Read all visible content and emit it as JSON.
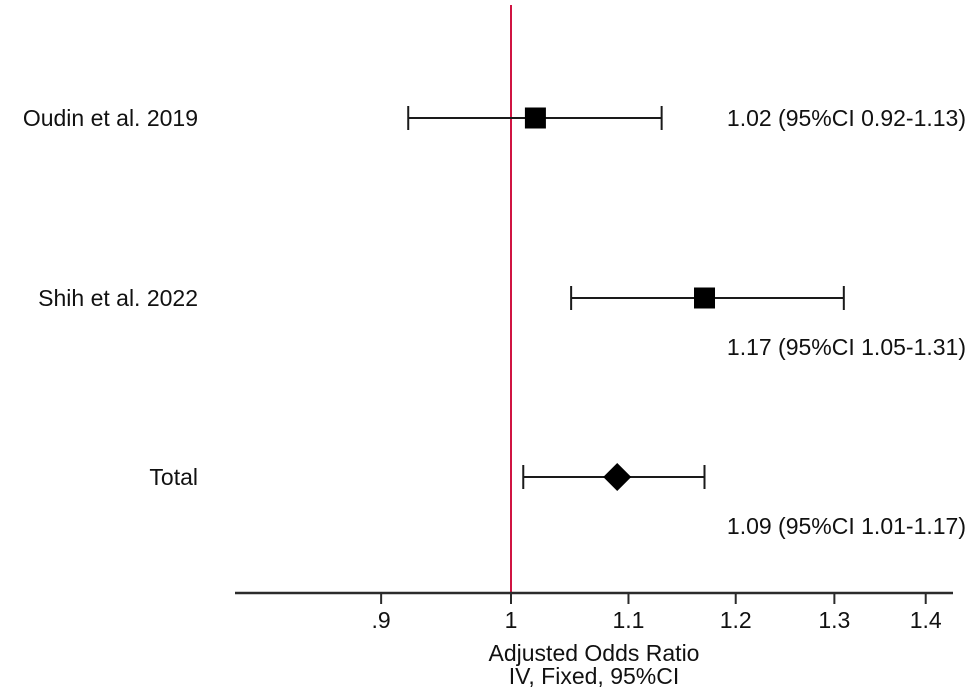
{
  "figure": {
    "background": "#ffffff"
  },
  "chart_data": {
    "type": "scatter",
    "subtype": "forest-plot",
    "title": "",
    "xlabel": "Adjusted Odds Ratio",
    "xlabel_line2": "IV, Fixed, 95%CI",
    "x_scale": "log10",
    "x_range": [
      0.78,
      1.43
    ],
    "x_ticks": [
      0.9,
      1.0,
      1.1,
      1.2,
      1.3,
      1.4
    ],
    "x_tick_labels": [
      ".9",
      "1",
      "1.1",
      "1.2",
      "1.3",
      "1.4"
    ],
    "reference_line_x": 1.0,
    "grid": false,
    "legend": "none",
    "series": [
      {
        "name": "Oudin et al. 2019",
        "estimate": 1.02,
        "ci_low": 0.92,
        "ci_high": 1.13,
        "marker": "square",
        "annotation": "1.02 (95%CI 0.92-1.13)",
        "annotation_position": "inline"
      },
      {
        "name": "Shih et al. 2022",
        "estimate": 1.17,
        "ci_low": 1.05,
        "ci_high": 1.31,
        "marker": "square",
        "annotation": "1.17 (95%CI 1.05-1.31)",
        "annotation_position": "below"
      },
      {
        "name": "Total",
        "estimate": 1.09,
        "ci_low": 1.01,
        "ci_high": 1.17,
        "marker": "diamond",
        "annotation": "1.09 (95%CI 1.01-1.17)",
        "annotation_position": "below"
      }
    ],
    "colors": {
      "reference_line": "#d01442",
      "ci_line": "#1a1a1a",
      "marker": "#000000",
      "axis": "#2b2b2b",
      "text": "#111111"
    }
  }
}
